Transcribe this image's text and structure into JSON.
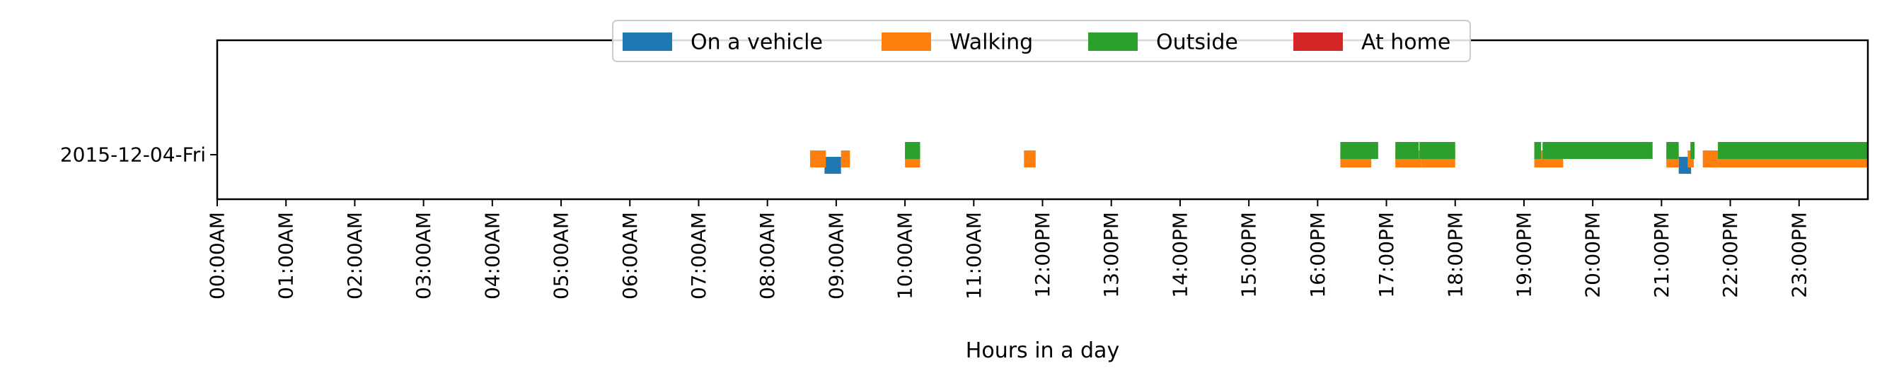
{
  "chart_data": {
    "type": "timeline",
    "xlabel": "Hours in a day",
    "ylabel": "",
    "xlim": [
      0,
      24
    ],
    "xticks": [
      "00:00AM",
      "01:00AM",
      "02:00AM",
      "03:00AM",
      "04:00AM",
      "05:00AM",
      "06:00AM",
      "07:00AM",
      "08:00AM",
      "09:00AM",
      "10:00AM",
      "11:00AM",
      "12:00PM",
      "13:00PM",
      "14:00PM",
      "15:00PM",
      "16:00PM",
      "17:00PM",
      "18:00PM",
      "19:00PM",
      "20:00PM",
      "21:00PM",
      "22:00PM",
      "23:00PM"
    ],
    "yticks": [
      "2015-12-04-Fri"
    ],
    "legend_position": "top-center",
    "series": [
      {
        "name": "On a vehicle",
        "color": "#1f77b4",
        "row_offset": -0.25,
        "intervals": [
          [
            8.83,
            9.07
          ],
          [
            21.25,
            21.43
          ]
        ]
      },
      {
        "name": "Walking",
        "color": "#ff7f0e",
        "row_offset": -0.1,
        "intervals": [
          [
            8.62,
            8.85
          ],
          [
            9.07,
            9.2
          ],
          [
            10.0,
            10.22
          ],
          [
            11.73,
            11.9
          ],
          [
            16.33,
            16.78
          ],
          [
            17.13,
            17.5
          ],
          [
            17.5,
            18.0
          ],
          [
            19.15,
            19.57
          ],
          [
            21.07,
            21.25
          ],
          [
            21.38,
            21.47
          ],
          [
            21.6,
            21.82
          ],
          [
            21.82,
            24.0
          ]
        ]
      },
      {
        "name": "Outside",
        "color": "#2ca02c",
        "row_offset": 0.1,
        "intervals": [
          [
            10.0,
            10.22
          ],
          [
            16.33,
            16.88
          ],
          [
            17.13,
            17.47
          ],
          [
            17.48,
            18.0
          ],
          [
            19.15,
            19.25
          ],
          [
            19.27,
            20.87
          ],
          [
            21.07,
            21.25
          ],
          [
            21.42,
            21.48
          ],
          [
            21.82,
            24.0
          ]
        ]
      },
      {
        "name": "At home",
        "color": "#d62728",
        "row_offset": 0.25,
        "intervals": []
      }
    ]
  }
}
